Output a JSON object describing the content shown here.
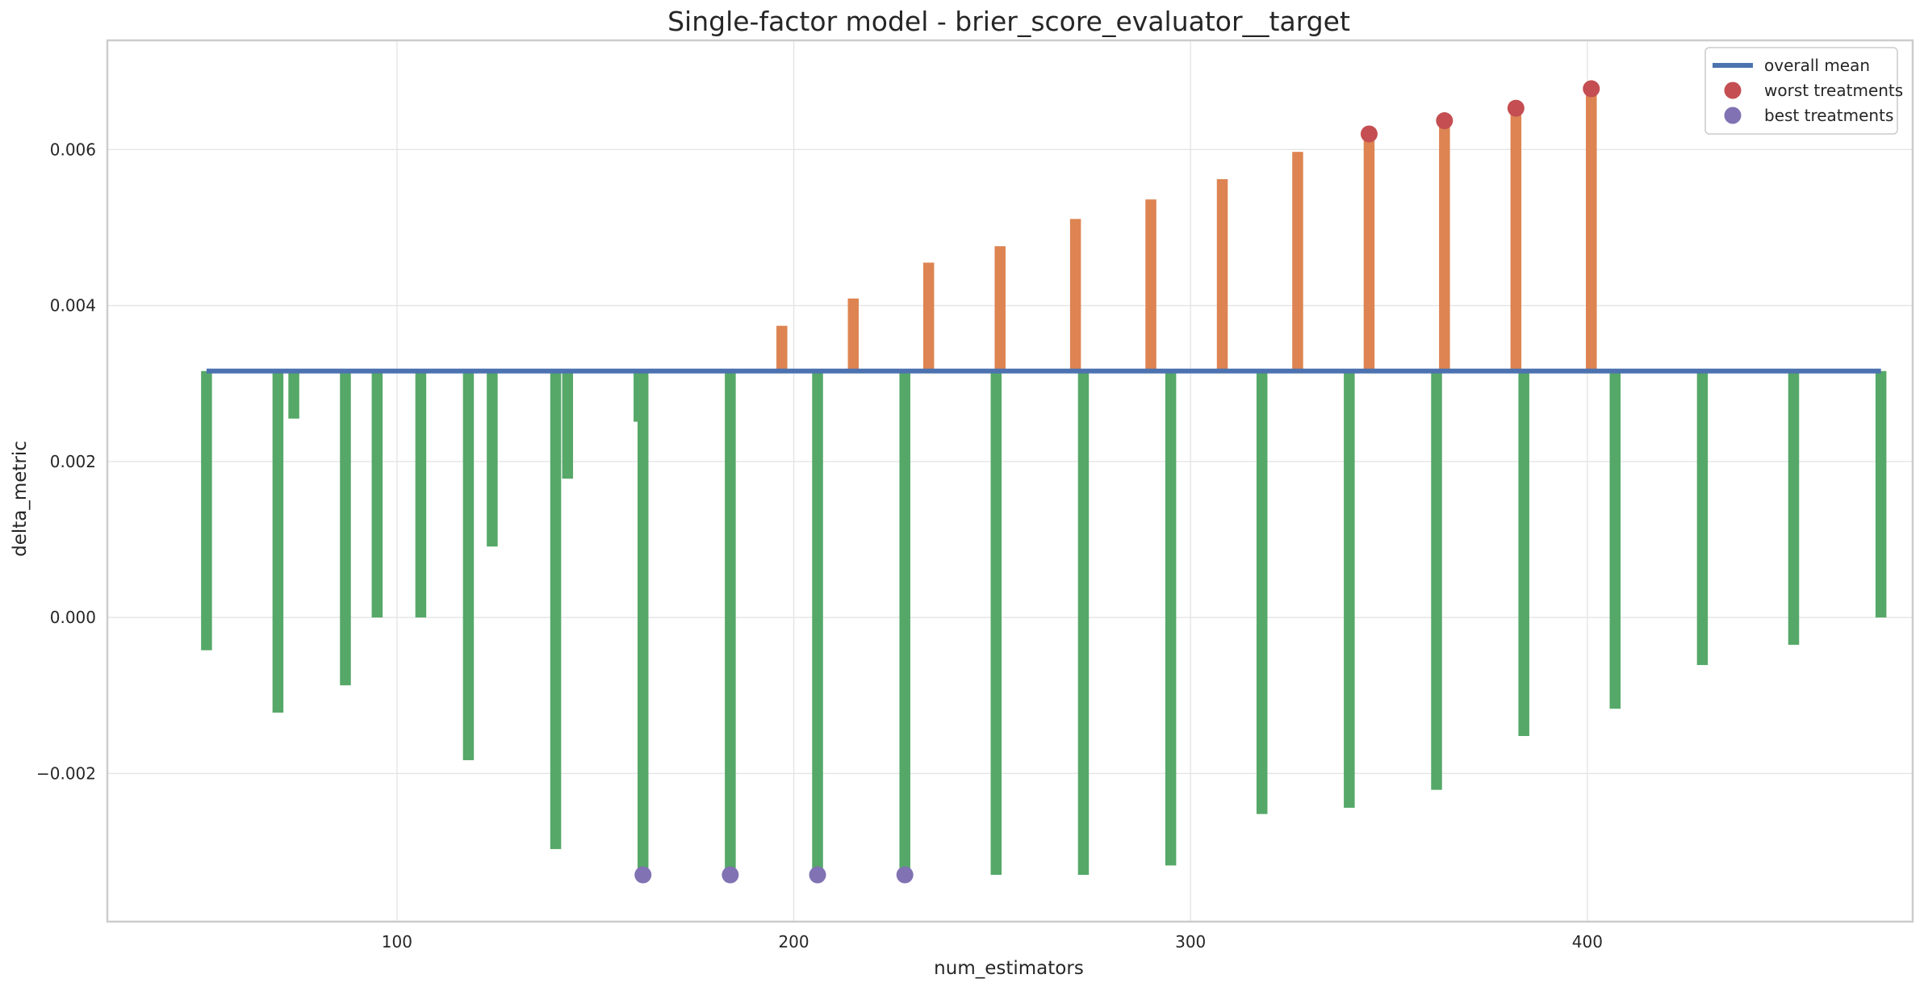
{
  "chart_data": {
    "type": "bar",
    "title": "Single-factor model - brier_score_evaluator__target",
    "xlabel": "num_estimators",
    "ylabel": "delta_metric",
    "xlim": [
      27,
      482
    ],
    "ylim": [
      -0.0039,
      0.0074
    ],
    "xticks": [
      100,
      200,
      300,
      400
    ],
    "yticks": [
      -0.002,
      0.0,
      0.002,
      0.004,
      0.006
    ],
    "ytick_labels": [
      "−0.002",
      "0.000",
      "0.002",
      "0.004",
      "0.006"
    ],
    "baseline": 0.00316,
    "grid": true,
    "legend_position": "top-right",
    "colors": {
      "mean_line": "#4c72b0",
      "below_mean": "#55a868",
      "above_mean": "#dd8452",
      "worst": "#c44e52",
      "best": "#8172b3"
    },
    "series": [
      {
        "name": "overall mean",
        "kind": "line",
        "x": [
          52,
          474
        ],
        "values": [
          0.00316,
          0.00316
        ]
      },
      {
        "kind": "bar",
        "x": [
          52,
          70,
          74,
          87,
          95,
          106,
          118,
          124,
          140,
          143,
          161,
          162,
          184,
          206,
          228,
          251,
          273,
          295,
          318,
          340,
          362,
          384,
          407,
          429,
          452,
          474
        ],
        "values": [
          -0.00042,
          -0.00122,
          0.00255,
          -0.00087,
          0.0,
          0.0,
          -0.00183,
          0.00091,
          -0.00297,
          0.00178,
          0.00251,
          -0.0033,
          -0.0033,
          -0.0033,
          -0.0033,
          -0.0033,
          -0.0033,
          -0.00318,
          -0.00252,
          -0.00244,
          -0.00221,
          -0.00152,
          -0.00117,
          -0.00061,
          -0.00035,
          0.0
        ]
      },
      {
        "kind": "bar",
        "x": [
          197,
          215,
          234,
          252,
          271,
          290,
          308,
          327,
          345,
          364,
          382,
          401
        ],
        "values": [
          0.00374,
          0.00409,
          0.00455,
          0.00476,
          0.00511,
          0.00536,
          0.00562,
          0.00597,
          0.0062,
          0.00637,
          0.00653,
          0.00678
        ]
      },
      {
        "name": "worst treatments",
        "kind": "points",
        "x": [
          345,
          364,
          382,
          401
        ],
        "values": [
          0.0062,
          0.00637,
          0.00653,
          0.00678
        ]
      },
      {
        "name": "best treatments",
        "kind": "points",
        "x": [
          162,
          184,
          206,
          228
        ],
        "values": [
          -0.0033,
          -0.0033,
          -0.0033,
          -0.0033
        ]
      }
    ]
  }
}
